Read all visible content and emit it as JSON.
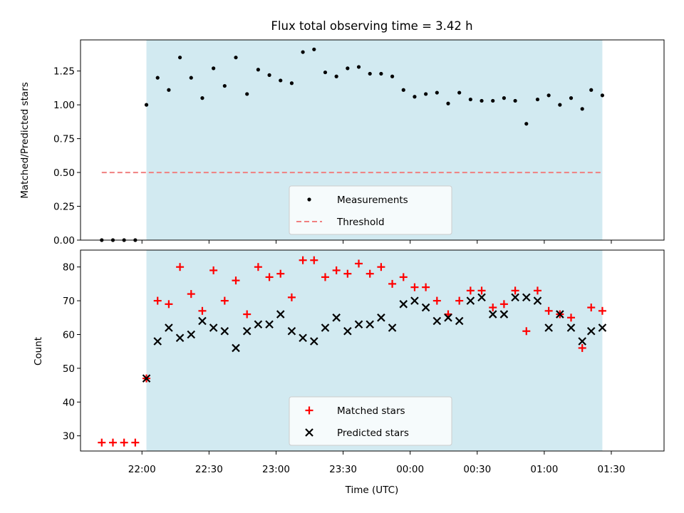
{
  "figure": {
    "title": "Flux total observing time = 3.42 h",
    "xlabel": "Time (UTC)",
    "x_tick_labels": [
      "22:00",
      "22:30",
      "23:00",
      "23:30",
      "00:00",
      "00:30",
      "01:00",
      "01:30"
    ],
    "shaded_color": "#add8e6",
    "shaded_span": [
      "22:02",
      "01:26"
    ]
  },
  "chart_data": [
    {
      "type": "scatter",
      "ylabel": "Matched/Predicted stars",
      "ylim": [
        0,
        1.48
      ],
      "y_ticks": [
        "0.00",
        "0.25",
        "0.50",
        "0.75",
        "1.00",
        "1.25"
      ],
      "legend_placement": "lower-center",
      "series": [
        {
          "name": "Measurements",
          "color": "#000000",
          "marker": "dot",
          "x": [
            "21:42",
            "21:47",
            "21:52",
            "21:57",
            "22:02",
            "22:07",
            "22:12",
            "22:17",
            "22:22",
            "22:27",
            "22:32",
            "22:37",
            "22:42",
            "22:47",
            "22:52",
            "22:57",
            "23:02",
            "23:07",
            "23:12",
            "23:17",
            "23:22",
            "23:27",
            "23:32",
            "23:37",
            "23:42",
            "23:47",
            "23:52",
            "23:57",
            "00:02",
            "00:07",
            "00:12",
            "00:17",
            "00:22",
            "00:27",
            "00:32",
            "00:37",
            "00:42",
            "00:47",
            "00:52",
            "00:57",
            "01:02",
            "01:07",
            "01:12",
            "01:17",
            "01:21",
            "01:26"
          ],
          "y": [
            0,
            0,
            0,
            0,
            1.0,
            1.2,
            1.11,
            1.35,
            1.2,
            1.05,
            1.27,
            1.14,
            1.35,
            1.08,
            1.26,
            1.22,
            1.18,
            1.16,
            1.39,
            1.41,
            1.24,
            1.21,
            1.27,
            1.28,
            1.23,
            1.23,
            1.21,
            1.11,
            1.06,
            1.08,
            1.09,
            1.01,
            1.09,
            1.04,
            1.03,
            1.03,
            1.05,
            1.03,
            0.86,
            1.04,
            1.07,
            1.0,
            1.05,
            0.97,
            1.11,
            1.07
          ]
        },
        {
          "name": "Threshold",
          "color": "#f08080",
          "style": "dashed",
          "x": [
            "21:42",
            "01:26"
          ],
          "y": [
            0.5,
            0.5
          ]
        }
      ]
    },
    {
      "type": "scatter",
      "ylabel": "Count",
      "ylim": [
        25.5,
        85
      ],
      "y_ticks": [
        "30",
        "40",
        "50",
        "60",
        "70",
        "80"
      ],
      "legend_placement": "lower-center",
      "series": [
        {
          "name": "Matched stars",
          "color": "#ff0000",
          "marker": "plus",
          "x": [
            "21:42",
            "21:47",
            "21:52",
            "21:57",
            "22:02",
            "22:07",
            "22:12",
            "22:17",
            "22:22",
            "22:27",
            "22:32",
            "22:37",
            "22:42",
            "22:47",
            "22:52",
            "22:57",
            "23:02",
            "23:07",
            "23:12",
            "23:17",
            "23:22",
            "23:27",
            "23:32",
            "23:37",
            "23:42",
            "23:47",
            "23:52",
            "23:57",
            "00:02",
            "00:07",
            "00:12",
            "00:17",
            "00:22",
            "00:27",
            "00:32",
            "00:37",
            "00:42",
            "00:47",
            "00:52",
            "00:57",
            "01:02",
            "01:07",
            "01:12",
            "01:17",
            "01:21",
            "01:26"
          ],
          "y": [
            28,
            28,
            28,
            28,
            47,
            70,
            69,
            80,
            72,
            67,
            79,
            70,
            76,
            66,
            80,
            77,
            78,
            71,
            82,
            82,
            77,
            79,
            78,
            81,
            78,
            80,
            75,
            77,
            74,
            74,
            70,
            66,
            70,
            73,
            73,
            68,
            69,
            73,
            61,
            73,
            67,
            66,
            65,
            56,
            68,
            67
          ]
        },
        {
          "name": "Predicted stars",
          "color": "#000000",
          "marker": "x",
          "x": [
            "22:02",
            "22:07",
            "22:12",
            "22:17",
            "22:22",
            "22:27",
            "22:32",
            "22:37",
            "22:42",
            "22:47",
            "22:52",
            "22:57",
            "23:02",
            "23:07",
            "23:12",
            "23:17",
            "23:22",
            "23:27",
            "23:32",
            "23:37",
            "23:42",
            "23:47",
            "23:52",
            "23:57",
            "00:02",
            "00:07",
            "00:12",
            "00:17",
            "00:22",
            "00:27",
            "00:32",
            "00:37",
            "00:42",
            "00:47",
            "00:52",
            "00:57",
            "01:02",
            "01:07",
            "01:12",
            "01:17",
            "01:21",
            "01:26"
          ],
          "y": [
            47,
            58,
            62,
            59,
            60,
            64,
            62,
            61,
            56,
            61,
            63,
            63,
            66,
            61,
            59,
            58,
            62,
            65,
            61,
            63,
            63,
            65,
            62,
            69,
            70,
            68,
            64,
            65,
            64,
            70,
            71,
            66,
            66,
            71,
            71,
            70,
            62,
            66,
            62,
            58,
            61,
            62
          ]
        }
      ]
    }
  ]
}
